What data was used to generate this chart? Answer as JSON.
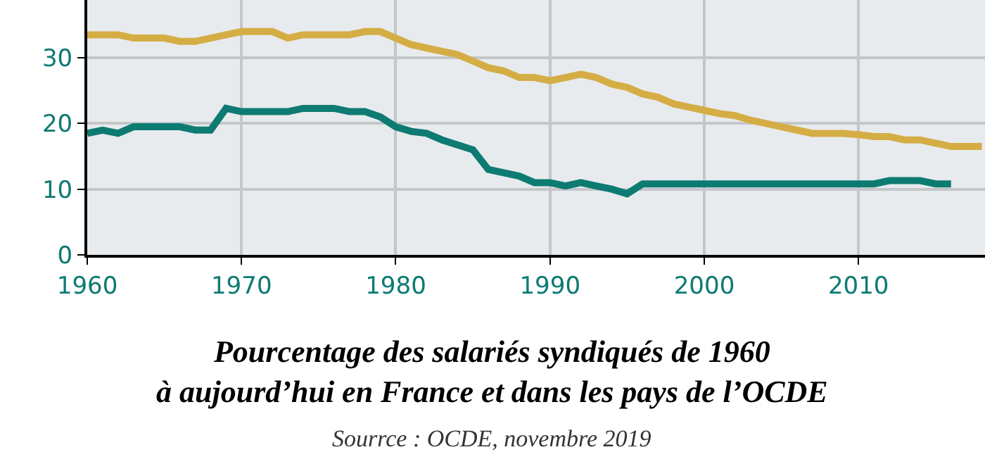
{
  "chart_data": {
    "type": "line",
    "title": "Pourcentage des salariés syndiqués de 1960\nà aujourd’hui en France et dans les pays de l’OCDE",
    "annotations": [
      "Sourrce : OCDE, novembre 2019"
    ],
    "xlim": [
      1960,
      2018.2
    ],
    "xticks": [
      1960,
      1970,
      1980,
      1990,
      2000,
      2010
    ],
    "ylim": [
      0,
      38.8
    ],
    "yticks": [
      0,
      10,
      20,
      30
    ],
    "grid": true,
    "legend": false,
    "marker": "none",
    "line_style": "solid",
    "series": [
      {
        "color": "#d4ad45",
        "x": [
          1960,
          1962,
          1963,
          1965,
          1966,
          1967,
          1969,
          1970,
          1972,
          1973,
          1974,
          1977,
          1978,
          1979,
          1980,
          1981,
          1983,
          1984,
          1985,
          1986,
          1987,
          1988,
          1989,
          1990,
          1991,
          1992,
          1993,
          1994,
          1995,
          1996,
          1997,
          1998,
          1999,
          2000,
          2001,
          2002,
          2003,
          2004,
          2005,
          2006,
          2007,
          2008,
          2009,
          2010,
          2011,
          2012,
          2013,
          2014,
          2015,
          2016,
          2018
        ],
        "values": [
          33.5,
          33.5,
          33,
          33,
          32.5,
          32.5,
          33.5,
          34,
          34,
          33,
          33.5,
          33.5,
          34,
          34,
          33,
          32,
          31,
          30.5,
          29.5,
          28.5,
          28,
          27,
          27,
          26.5,
          27,
          27.5,
          27,
          26,
          25.5,
          24.5,
          24,
          23,
          22.5,
          22,
          21.5,
          21.2,
          20.5,
          20,
          19.5,
          19,
          18.5,
          18.5,
          18.5,
          18.3,
          18,
          18,
          17.5,
          17.5,
          17,
          16.5,
          16.5
        ]
      },
      {
        "color": "#0e7b73",
        "x": [
          1960,
          1961,
          1962,
          1963,
          1966,
          1967,
          1968,
          1969,
          1970,
          1973,
          1974,
          1976,
          1977,
          1978,
          1979,
          1980,
          1981,
          1982,
          1983,
          1985,
          1986,
          1987,
          1988,
          1989,
          1990,
          1991,
          1992,
          1993,
          1994,
          1995,
          1996,
          2011,
          2012,
          2014,
          2015,
          2016
        ],
        "values": [
          18.5,
          19,
          18.5,
          19.5,
          19.5,
          19,
          19,
          22.3,
          21.8,
          21.8,
          22.3,
          22.3,
          21.8,
          21.8,
          21,
          19.5,
          18.8,
          18.5,
          17.5,
          16,
          13,
          12.5,
          12,
          11,
          11,
          10.5,
          11,
          10.5,
          10,
          9.3,
          10.8,
          10.8,
          11.3,
          11.3,
          10.8,
          10.8
        ]
      }
    ]
  }
}
